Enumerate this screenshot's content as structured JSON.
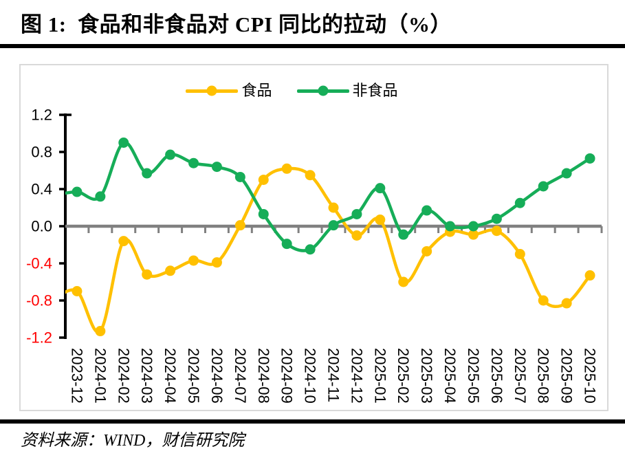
{
  "title": "图 1:  食品和非食品对 CPI 同比的拉动（%）",
  "source": "资料来源：WIND，财信研究院",
  "chart_data": {
    "type": "line",
    "title": "食品和非食品对 CPI 同比的拉动（%）",
    "categories": [
      "2023-12",
      "2024-01",
      "2024-02",
      "2024-03",
      "2024-04",
      "2024-05",
      "2024-06",
      "2024-07",
      "2024-08",
      "2024-09",
      "2024-10",
      "2024-11",
      "2024-12",
      "2025-01",
      "2025-02",
      "2025-03",
      "2025-04",
      "2025-05",
      "2025-06",
      "2025-07",
      "2025-08",
      "2025-09",
      "2025-10"
    ],
    "series": [
      {
        "name": "食品",
        "color": "#FFC000",
        "values": [
          -0.7,
          -1.13,
          -0.16,
          -0.52,
          -0.48,
          -0.37,
          -0.39,
          0.01,
          0.5,
          0.62,
          0.55,
          0.2,
          -0.1,
          0.07,
          -0.6,
          -0.27,
          -0.06,
          -0.09,
          -0.05,
          -0.3,
          -0.8,
          -0.83,
          -0.53
        ],
        "lead_in_value": -0.79
      },
      {
        "name": "非食品",
        "color": "#16AD58",
        "values": [
          0.37,
          0.32,
          0.9,
          0.57,
          0.77,
          0.68,
          0.64,
          0.53,
          0.13,
          -0.19,
          -0.25,
          0.01,
          0.13,
          0.41,
          -0.09,
          0.17,
          0.0,
          0.0,
          0.08,
          0.25,
          0.43,
          0.57,
          0.73
        ],
        "lead_in_value": 0.33
      }
    ],
    "ylim": [
      -1.2,
      1.2
    ],
    "yticks": [
      1.2,
      0.8,
      0.4,
      0.0,
      -0.4,
      -0.8,
      -1.2
    ],
    "xlabel": "",
    "ylabel": "",
    "smooth": true,
    "marker": "circle",
    "grid": false,
    "zero_line": true,
    "legend_position": "top",
    "colors": {
      "axis": "#000000",
      "zero_line": "#808080",
      "positive_label": "#000000",
      "negative_label": "#FF0000",
      "x_label": "#000000",
      "panel_border": "#D9D9D9"
    }
  }
}
